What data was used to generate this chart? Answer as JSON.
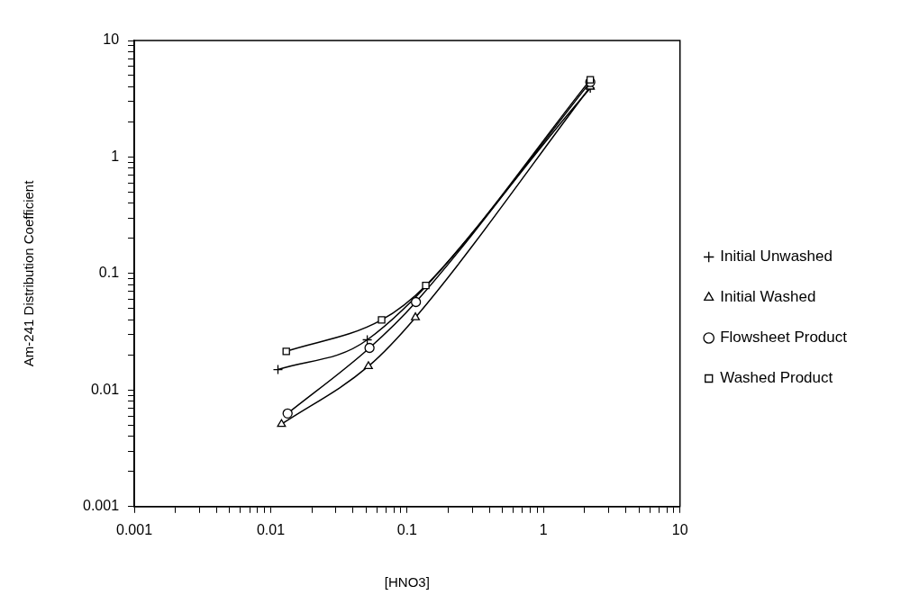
{
  "chart_data": {
    "type": "line",
    "xlabel": "[HNO3]",
    "ylabel": "Am-241 Distribution Coefficient",
    "log": "xy",
    "legend": "right",
    "line_style": "solid",
    "xlim": [
      0.001,
      10
    ],
    "ylim": [
      0.001,
      10
    ],
    "xticks": [
      0.001,
      {
        "value": 0.002,
        "label": null
      },
      {
        "value": 0.003,
        "label": null
      },
      {
        "value": 0.004,
        "label": null
      },
      {
        "value": 0.005,
        "label": null
      },
      {
        "value": 0.006,
        "label": null
      },
      {
        "value": 0.007,
        "label": null
      },
      {
        "value": 0.008,
        "label": null
      },
      {
        "value": 0.009,
        "label": null
      },
      0.01,
      {
        "value": 0.02,
        "label": null
      },
      {
        "value": 0.03,
        "label": null
      },
      {
        "value": 0.04,
        "label": null
      },
      {
        "value": 0.05,
        "label": null
      },
      {
        "value": 0.06,
        "label": null
      },
      {
        "value": 0.07,
        "label": null
      },
      {
        "value": 0.08,
        "label": null
      },
      {
        "value": 0.09,
        "label": null
      },
      0.1,
      {
        "value": 0.2,
        "label": null
      },
      {
        "value": 0.3,
        "label": null
      },
      {
        "value": 0.4,
        "label": null
      },
      {
        "value": 0.5,
        "label": null
      },
      {
        "value": 0.6,
        "label": null
      },
      {
        "value": 0.7,
        "label": null
      },
      {
        "value": 0.8,
        "label": null
      },
      {
        "value": 0.9,
        "label": null
      },
      1,
      {
        "value": 2,
        "label": null
      },
      {
        "value": 3,
        "label": null
      },
      {
        "value": 4,
        "label": null
      },
      {
        "value": 5,
        "label": null
      },
      {
        "value": 6,
        "label": null
      },
      {
        "value": 7,
        "label": null
      },
      {
        "value": 8,
        "label": null
      },
      {
        "value": 9,
        "label": null
      },
      10
    ],
    "yticks": [
      0.001,
      {
        "value": 0.002,
        "label": null
      },
      {
        "value": 0.003,
        "label": null
      },
      {
        "value": 0.004,
        "label": null
      },
      {
        "value": 0.005,
        "label": null
      },
      {
        "value": 0.006,
        "label": null
      },
      {
        "value": 0.007,
        "label": null
      },
      {
        "value": 0.008,
        "label": null
      },
      {
        "value": 0.009,
        "label": null
      },
      0.01,
      {
        "value": 0.02,
        "label": null
      },
      {
        "value": 0.03,
        "label": null
      },
      {
        "value": 0.04,
        "label": null
      },
      {
        "value": 0.05,
        "label": null
      },
      {
        "value": 0.06,
        "label": null
      },
      {
        "value": 0.07,
        "label": null
      },
      {
        "value": 0.08,
        "label": null
      },
      {
        "value": 0.09,
        "label": null
      },
      0.1,
      {
        "value": 0.2,
        "label": null
      },
      {
        "value": 0.3,
        "label": null
      },
      {
        "value": 0.4,
        "label": null
      },
      {
        "value": 0.5,
        "label": null
      },
      {
        "value": 0.6,
        "label": null
      },
      {
        "value": 0.7,
        "label": null
      },
      {
        "value": 0.8,
        "label": null
      },
      {
        "value": 0.9,
        "label": null
      },
      1,
      {
        "value": 2,
        "label": null
      },
      {
        "value": 3,
        "label": null
      },
      {
        "value": 4,
        "label": null
      },
      {
        "value": 5,
        "label": null
      },
      {
        "value": 6,
        "label": null
      },
      {
        "value": 7,
        "label": null
      },
      {
        "value": 8,
        "label": null
      },
      {
        "value": 9,
        "label": null
      },
      10
    ],
    "series": [
      {
        "name": "Initial Unwashed",
        "color": "#000000",
        "marker": "cross",
        "x": [
          0.0113,
          0.051,
          2.2
        ],
        "values": [
          0.015,
          0.027,
          3.9
        ]
      },
      {
        "name": "Initial Washed",
        "color": "#000000",
        "marker": "triangle",
        "x": [
          0.012,
          0.052,
          0.115,
          2.2
        ],
        "values": [
          0.0051,
          0.016,
          0.042,
          4.0
        ]
      },
      {
        "name": "Flowsheet Product",
        "color": "#000000",
        "marker": "circle",
        "x": [
          0.0133,
          0.053,
          0.116,
          2.2
        ],
        "values": [
          0.0063,
          0.023,
          0.057,
          4.4
        ]
      },
      {
        "name": "Washed Product",
        "color": "#000000",
        "marker": "square",
        "x": [
          0.013,
          0.065,
          0.137,
          2.2
        ],
        "values": [
          0.0215,
          0.04,
          0.079,
          4.6
        ]
      }
    ]
  }
}
